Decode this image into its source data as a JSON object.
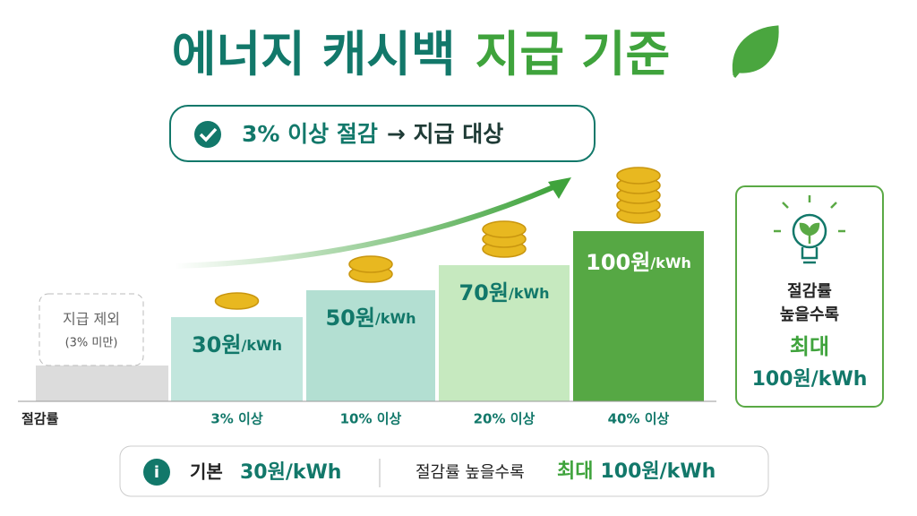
{
  "title": {
    "part1": "에너지 캐시백",
    "part2": "지급 기준"
  },
  "badge": {
    "highlight": "3% 이상 절감",
    "rest": "→ 지급 대상"
  },
  "excluded": {
    "label": "지급 제외",
    "note": "(3% 미만)"
  },
  "tiers": [
    {
      "amount": "30원",
      "unit": "/kWh",
      "threshold": "3% 이상"
    },
    {
      "amount": "50원",
      "unit": "/kWh",
      "threshold": "10% 이상"
    },
    {
      "amount": "70원",
      "unit": "/kWh",
      "threshold": "20% 이상"
    },
    {
      "amount": "100원",
      "unit": "/kWh",
      "threshold": "40% 이상"
    }
  ],
  "axis_label": "절감률",
  "side": {
    "line1": "절감률",
    "line2": "높을수록",
    "line3": "최대",
    "line4": "100원/kWh"
  },
  "footer": {
    "base_label": "기본",
    "base_value": "30원/kWh",
    "desc": "절감률 높을수록",
    "max_label": "최대",
    "max_value": "100원/kWh"
  }
}
